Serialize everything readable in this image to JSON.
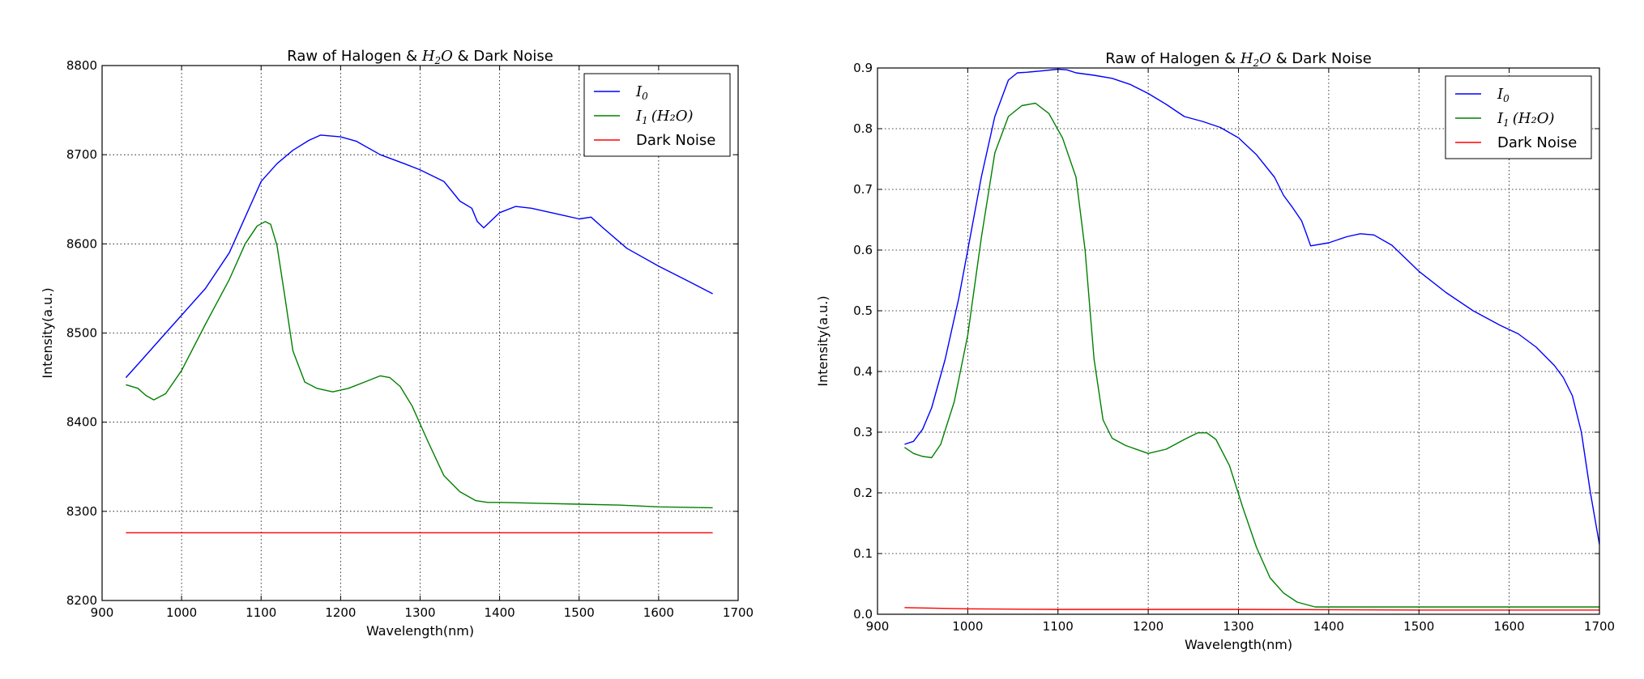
{
  "chart_data": [
    {
      "type": "line",
      "title": "Raw of Halogen & H₂O & Dark Noise",
      "title_parts": {
        "before": "Raw of Halogen & ",
        "math": "H",
        "sub": "2",
        "math2": "O",
        "after": " & Dark Noise"
      },
      "xlabel": "Wavelength(nm)",
      "ylabel": "Intensity(a.u.)",
      "xlim": [
        900,
        1700
      ],
      "ylim": [
        8200,
        8800
      ],
      "xticks": [
        900,
        1000,
        1100,
        1200,
        1300,
        1400,
        1500,
        1600,
        1700
      ],
      "yticks": [
        8200,
        8300,
        8400,
        8500,
        8600,
        8700,
        8800
      ],
      "grid": true,
      "legend_position": "top-right",
      "legend": [
        {
          "label": "I",
          "sub": "0",
          "suffix": "",
          "color": "#0000ff"
        },
        {
          "label": "I",
          "sub": "1",
          "suffix": "(H₂O)",
          "color": "#008000"
        },
        {
          "label": "Dark Noise",
          "sub": "",
          "suffix": "",
          "color": "#ff0000"
        }
      ],
      "series": [
        {
          "name": "I0",
          "color": "#0000ff",
          "x": [
            930,
            950,
            970,
            1000,
            1030,
            1060,
            1080,
            1100,
            1120,
            1140,
            1160,
            1175,
            1200,
            1220,
            1250,
            1280,
            1300,
            1330,
            1350,
            1365,
            1372,
            1380,
            1400,
            1420,
            1440,
            1460,
            1480,
            1500,
            1515,
            1530,
            1560,
            1600,
            1640,
            1668
          ],
          "y": [
            8450,
            8470,
            8490,
            8520,
            8550,
            8590,
            8630,
            8670,
            8690,
            8705,
            8716,
            8722,
            8720,
            8715,
            8700,
            8690,
            8683,
            8670,
            8648,
            8640,
            8625,
            8618,
            8635,
            8642,
            8640,
            8636,
            8632,
            8628,
            8630,
            8618,
            8595,
            8575,
            8557,
            8544
          ]
        },
        {
          "name": "I1(H2O)",
          "color": "#008000",
          "x": [
            930,
            945,
            955,
            965,
            980,
            1000,
            1030,
            1060,
            1080,
            1095,
            1105,
            1112,
            1120,
            1130,
            1140,
            1155,
            1170,
            1190,
            1210,
            1230,
            1250,
            1262,
            1275,
            1290,
            1310,
            1330,
            1350,
            1370,
            1385,
            1400,
            1450,
            1500,
            1550,
            1600,
            1668
          ],
          "y": [
            8442,
            8438,
            8430,
            8425,
            8432,
            8458,
            8510,
            8560,
            8600,
            8620,
            8625,
            8622,
            8598,
            8540,
            8480,
            8445,
            8438,
            8434,
            8438,
            8445,
            8452,
            8450,
            8440,
            8418,
            8378,
            8340,
            8322,
            8312,
            8310,
            8310,
            8309,
            8308,
            8307,
            8305,
            8304
          ]
        },
        {
          "name": "Dark Noise",
          "color": "#ff0000",
          "x": [
            930,
            1668
          ],
          "y": [
            8276,
            8276
          ]
        }
      ]
    },
    {
      "type": "line",
      "title": "Raw of Halogen & H₂O & Dark Noise",
      "title_parts": {
        "before": "Raw of Halogen & ",
        "math": "H",
        "sub": "2",
        "math2": "O",
        "after": " & Dark Noise"
      },
      "xlabel": "Wavelength(nm)",
      "ylabel": "Intensity(a.u.)",
      "xlim": [
        900,
        1700
      ],
      "ylim": [
        0.0,
        0.9
      ],
      "xticks": [
        900,
        1000,
        1100,
        1200,
        1300,
        1400,
        1500,
        1600,
        1700
      ],
      "yticks": [
        0.0,
        0.1,
        0.2,
        0.3,
        0.4,
        0.5,
        0.6,
        0.7,
        0.8,
        0.9
      ],
      "ytick_labels": [
        "0.0",
        "0.1",
        "0.2",
        "0.3",
        "0.4",
        "0.5",
        "0.6",
        "0.7",
        "0.8",
        "0.9"
      ],
      "grid": true,
      "legend_position": "top-right",
      "legend": [
        {
          "label": "I",
          "sub": "0",
          "suffix": "",
          "color": "#0000ff"
        },
        {
          "label": "I",
          "sub": "1",
          "suffix": "(H₂O)",
          "color": "#008000"
        },
        {
          "label": "Dark Noise",
          "sub": "",
          "suffix": "",
          "color": "#ff0000"
        }
      ],
      "series": [
        {
          "name": "I0",
          "color": "#0000ff",
          "x": [
            930,
            940,
            950,
            960,
            975,
            990,
            1000,
            1015,
            1030,
            1045,
            1055,
            1065,
            1080,
            1100,
            1110,
            1120,
            1140,
            1160,
            1180,
            1200,
            1220,
            1240,
            1260,
            1280,
            1300,
            1320,
            1340,
            1350,
            1360,
            1370,
            1375,
            1380,
            1400,
            1420,
            1435,
            1450,
            1470,
            1500,
            1530,
            1560,
            1590,
            1610,
            1630,
            1650,
            1660,
            1670,
            1680,
            1690,
            1700
          ],
          "y": [
            0.28,
            0.285,
            0.305,
            0.34,
            0.42,
            0.52,
            0.6,
            0.72,
            0.82,
            0.88,
            0.892,
            0.893,
            0.895,
            0.898,
            0.897,
            0.892,
            0.888,
            0.883,
            0.873,
            0.858,
            0.84,
            0.82,
            0.812,
            0.802,
            0.785,
            0.757,
            0.72,
            0.69,
            0.67,
            0.648,
            0.628,
            0.607,
            0.612,
            0.622,
            0.627,
            0.625,
            0.608,
            0.565,
            0.53,
            0.5,
            0.476,
            0.462,
            0.44,
            0.41,
            0.39,
            0.36,
            0.3,
            0.2,
            0.115
          ]
        },
        {
          "name": "I1(H2O)",
          "color": "#008000",
          "x": [
            930,
            940,
            950,
            960,
            970,
            985,
            1000,
            1015,
            1030,
            1045,
            1060,
            1075,
            1090,
            1105,
            1120,
            1130,
            1140,
            1150,
            1160,
            1175,
            1200,
            1220,
            1240,
            1255,
            1265,
            1275,
            1290,
            1305,
            1320,
            1335,
            1350,
            1365,
            1385,
            1400,
            1450,
            1500,
            1550,
            1600,
            1650,
            1700
          ],
          "y": [
            0.275,
            0.265,
            0.26,
            0.258,
            0.28,
            0.35,
            0.46,
            0.62,
            0.76,
            0.82,
            0.838,
            0.842,
            0.825,
            0.785,
            0.72,
            0.6,
            0.42,
            0.32,
            0.29,
            0.278,
            0.265,
            0.272,
            0.288,
            0.299,
            0.299,
            0.288,
            0.245,
            0.175,
            0.11,
            0.06,
            0.035,
            0.02,
            0.012,
            0.012,
            0.012,
            0.012,
            0.012,
            0.012,
            0.012,
            0.012
          ]
        },
        {
          "name": "Dark Noise",
          "color": "#ff0000",
          "x": [
            930,
            1000,
            1100,
            1300,
            1500,
            1700
          ],
          "y": [
            0.011,
            0.009,
            0.008,
            0.008,
            0.007,
            0.007
          ]
        }
      ]
    }
  ]
}
